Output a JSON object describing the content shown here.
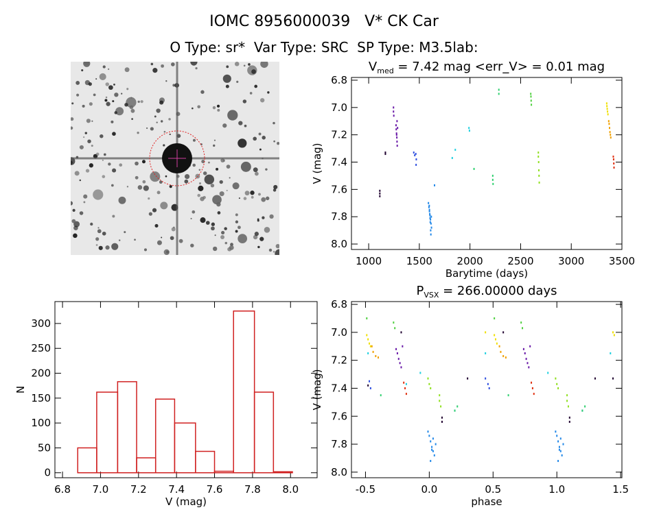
{
  "header": {
    "title": "IOMC 8956000039   V* CK Car",
    "subtitle": "O Type: sr*  Var Type: SRC  SP Type: M3.5lab:"
  },
  "chart_data": [
    {
      "type": "scatter",
      "title": [
        "V",
        "med",
        " = 7.42 mag <err_V> = 0.01 mag"
      ],
      "x_label": "Barytime (days)",
      "y_label": "V (mag)",
      "xlim": [
        830,
        3500
      ],
      "ylim": [
        8.04,
        6.78
      ],
      "xticks": [
        1000,
        1500,
        2000,
        2500,
        3000,
        3500
      ],
      "yticks": [
        6.8,
        {
          "value": 7,
          "label": "7.0"
        },
        7.2,
        7.4,
        7.6,
        7.8,
        {
          "value": 8,
          "label": "8.0"
        }
      ],
      "series": [
        {
          "color": "#200030",
          "x": [
            1110,
            1110,
            1110,
            1165,
            1165
          ],
          "values": [
            7.61,
            7.63,
            7.65,
            7.33,
            7.34
          ]
        },
        {
          "color": "#6a1aa8",
          "x": [
            1245,
            1245,
            1248,
            1270,
            1272,
            1275,
            1278,
            1280,
            1282,
            1285,
            1276,
            1280
          ],
          "values": [
            7.0,
            7.03,
            7.06,
            7.13,
            7.16,
            7.19,
            7.22,
            7.25,
            7.28,
            7.15,
            7.2,
            7.1
          ]
        },
        {
          "color": "#3050e0",
          "x": [
            1445,
            1455,
            1465,
            1470,
            1468
          ],
          "values": [
            7.33,
            7.35,
            7.34,
            7.38,
            7.42
          ]
        },
        {
          "color": "#2288e8",
          "x": [
            1590,
            1595,
            1600,
            1605,
            1610,
            1615,
            1620,
            1598,
            1603,
            1608,
            1612,
            1618,
            1600,
            1606,
            1614,
            1650
          ],
          "values": [
            7.7,
            7.73,
            7.76,
            7.79,
            7.82,
            7.85,
            7.88,
            7.72,
            7.78,
            7.84,
            7.9,
            7.8,
            7.75,
            7.81,
            7.93,
            7.57
          ]
        },
        {
          "color": "#20d0e0",
          "x": [
            1825,
            1855,
            1990,
            1995
          ],
          "values": [
            7.37,
            7.31,
            7.15,
            7.17
          ]
        },
        {
          "color": "#30d070",
          "x": [
            2040,
            2225,
            2225,
            2228,
            2285,
            2285
          ],
          "values": [
            7.45,
            7.5,
            7.53,
            7.56,
            6.87,
            6.9
          ]
        },
        {
          "color": "#50d040",
          "x": [
            2600,
            2602,
            2604,
            2606
          ],
          "values": [
            6.9,
            6.92,
            6.95,
            6.98
          ]
        },
        {
          "color": "#90e020",
          "x": [
            2675,
            2675,
            2678,
            2680,
            2682,
            2684
          ],
          "values": [
            7.33,
            7.36,
            7.4,
            7.46,
            7.5,
            7.55
          ]
        },
        {
          "color": "#f0e000",
          "x": [
            3350,
            3352,
            3355,
            3358,
            3362
          ],
          "values": [
            6.97,
            6.99,
            7.01,
            7.03,
            7.05
          ]
        },
        {
          "color": "#f0a000",
          "x": [
            3370,
            3374,
            3378,
            3382,
            3386,
            3390
          ],
          "values": [
            7.1,
            7.12,
            7.15,
            7.18,
            7.2,
            7.22
          ]
        },
        {
          "color": "#e03010",
          "x": [
            3415,
            3418,
            3420,
            3422
          ],
          "values": [
            7.36,
            7.38,
            7.41,
            7.44
          ]
        }
      ]
    },
    {
      "type": "histogram",
      "x_label": "V (mag)",
      "y_label": "N",
      "color": "#d02020",
      "bins": [
        6.88,
        6.98,
        7.09,
        7.19,
        7.29,
        7.39,
        7.5,
        7.6,
        7.7,
        7.81,
        7.91,
        8.01
      ],
      "values": [
        50,
        162,
        183,
        30,
        148,
        100,
        43,
        3,
        325,
        162,
        2
      ],
      "xlim": [
        6.76,
        8.14
      ],
      "ylim": [
        -10,
        344
      ],
      "xticks": [
        6.8,
        {
          "value": 7,
          "label": "7.0"
        },
        7.2,
        7.4,
        7.6,
        7.8,
        {
          "value": 8,
          "label": "8.0"
        }
      ],
      "yticks": [
        0,
        50,
        100,
        150,
        200,
        250,
        300
      ]
    },
    {
      "type": "scatter",
      "title": [
        "P",
        "VSX",
        " = 266.00000 days"
      ],
      "x_label": "phase",
      "y_label": "V (mag)",
      "xlim": [
        -0.61,
        1.51
      ],
      "ylim": [
        8.04,
        6.78
      ],
      "xticks": [
        -0.5,
        {
          "value": 0,
          "label": "0.0"
        },
        0.5,
        {
          "value": 1,
          "label": "1.0"
        },
        1.5
      ],
      "yticks": [
        6.8,
        {
          "value": 7,
          "label": "7.0"
        },
        7.2,
        7.4,
        7.6,
        7.8,
        {
          "value": 8,
          "label": "8.0"
        }
      ],
      "series": [
        {
          "color": "#200030",
          "x": [
            -0.48,
            -0.22,
            0.1,
            0.1,
            0.3,
            0.58,
            1.1,
            1.1,
            1.3,
            1.44
          ],
          "values": [
            7.38,
            7.0,
            7.61,
            7.64,
            7.33,
            7.0,
            7.61,
            7.64,
            7.33,
            7.33
          ]
        },
        {
          "color": "#6a1aa8",
          "x": [
            -0.26,
            -0.25,
            -0.24,
            -0.23,
            -0.22,
            -0.21,
            0.74,
            0.75,
            0.76,
            0.77,
            0.78,
            0.79
          ],
          "values": [
            7.12,
            7.15,
            7.19,
            7.22,
            7.25,
            7.1,
            7.12,
            7.15,
            7.19,
            7.22,
            7.25,
            7.1
          ]
        },
        {
          "color": "#3050e0",
          "x": [
            -0.47,
            -0.46,
            0.44,
            0.46,
            0.47
          ],
          "values": [
            7.35,
            7.4,
            7.33,
            7.37,
            7.4
          ]
        },
        {
          "color": "#2288e8",
          "x": [
            -0.01,
            0.0,
            0.01,
            0.02,
            0.03,
            0.04,
            0.05,
            0.01,
            0.03,
            0.02,
            0.2,
            0.99,
            1.0,
            1.01,
            1.02,
            1.03,
            1.04,
            1.05,
            1.01,
            1.03,
            1.02,
            1.2
          ],
          "values": [
            7.71,
            7.74,
            7.78,
            7.82,
            7.85,
            7.88,
            7.8,
            7.92,
            7.76,
            7.84,
            7.56,
            7.71,
            7.74,
            7.78,
            7.82,
            7.85,
            7.88,
            7.8,
            7.92,
            7.76,
            7.84,
            7.56
          ]
        },
        {
          "color": "#20d0e0",
          "x": [
            -0.48,
            -0.18,
            -0.07,
            0.44,
            0.93,
            1.42
          ],
          "values": [
            7.15,
            7.37,
            7.29,
            7.15,
            7.29,
            7.15
          ]
        },
        {
          "color": "#30d070",
          "x": [
            -0.38,
            0.2,
            0.22,
            0.62,
            1.2,
            1.22
          ],
          "values": [
            7.45,
            7.56,
            7.53,
            7.45,
            7.56,
            7.53
          ]
        },
        {
          "color": "#50d040",
          "x": [
            -0.49,
            -0.28,
            -0.27,
            0.51,
            0.72,
            0.73
          ],
          "values": [
            6.9,
            6.93,
            6.97,
            6.9,
            6.93,
            6.97
          ]
        },
        {
          "color": "#90e020",
          "x": [
            -0.01,
            0.0,
            0.01,
            0.08,
            0.08,
            0.09,
            0.99,
            1.0,
            1.01,
            1.08,
            1.08,
            1.09
          ],
          "values": [
            7.33,
            7.37,
            7.4,
            7.45,
            7.49,
            7.53,
            7.33,
            7.37,
            7.4,
            7.45,
            7.49,
            7.53
          ]
        },
        {
          "color": "#f0e000",
          "x": [
            -0.49,
            -0.48,
            -0.47,
            -0.46,
            0.44,
            0.51,
            0.52,
            0.53,
            1.44,
            1.45
          ],
          "values": [
            7.02,
            7.05,
            7.08,
            7.1,
            7.0,
            7.02,
            7.05,
            7.08,
            7.0,
            7.02
          ]
        },
        {
          "color": "#f0a000",
          "x": [
            -0.45,
            -0.44,
            -0.42,
            -0.4,
            0.55,
            0.56,
            0.58,
            0.6
          ],
          "values": [
            7.1,
            7.14,
            7.17,
            7.18,
            7.1,
            7.14,
            7.17,
            7.18
          ]
        },
        {
          "color": "#e03010",
          "x": [
            -0.2,
            -0.19,
            -0.18,
            0.8,
            0.81,
            0.82
          ],
          "values": [
            7.36,
            7.4,
            7.44,
            7.36,
            7.4,
            7.44
          ]
        }
      ]
    }
  ]
}
